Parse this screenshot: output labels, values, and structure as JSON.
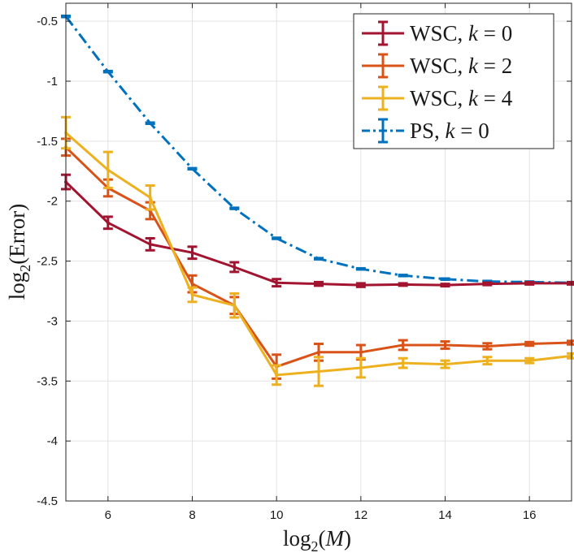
{
  "chart_data": {
    "type": "line",
    "xlabel": "log2(M)",
    "ylabel": "log2(Error)",
    "xlim": [
      5,
      17
    ],
    "ylim": [
      -4.5,
      -0.35
    ],
    "xticks": [
      6,
      8,
      10,
      12,
      14,
      16
    ],
    "xtick_labels": [
      "6",
      "8",
      "10",
      "12",
      "14",
      "16"
    ],
    "yticks": [
      -4.5,
      -4,
      -3.5,
      -3,
      -2.5,
      -2,
      -1.5,
      -1,
      -0.5
    ],
    "ytick_labels": [
      "-4.5",
      "-4",
      "-3.5",
      "-3",
      "-2.5",
      "-2",
      "-1.5",
      "-1",
      "-0.5"
    ],
    "grid": true,
    "legend_position": "top-right",
    "x": [
      5,
      6,
      7,
      8,
      9,
      10,
      11,
      12,
      13,
      14,
      15,
      16,
      17
    ],
    "series": [
      {
        "name": "WSC, k = 0",
        "color": "#A2142F",
        "line_style": "solid",
        "values": [
          -1.84,
          -2.18,
          -2.36,
          -2.43,
          -2.55,
          -2.68,
          -2.69,
          -2.7,
          -2.695,
          -2.7,
          -2.69,
          -2.685,
          -2.685
        ],
        "errors": [
          0.06,
          0.05,
          0.05,
          0.05,
          0.04,
          0.03,
          0.015,
          0.015,
          0.01,
          0.01,
          0.01,
          0.01,
          0.01
        ]
      },
      {
        "name": "WSC, k = 2",
        "color": "#D95319",
        "line_style": "solid",
        "values": [
          -1.55,
          -1.89,
          -2.08,
          -2.69,
          -2.87,
          -3.38,
          -3.26,
          -3.26,
          -3.2,
          -3.2,
          -3.21,
          -3.19,
          -3.18
        ],
        "errors": [
          0.07,
          0.07,
          0.07,
          0.07,
          0.07,
          0.1,
          0.07,
          0.06,
          0.04,
          0.03,
          0.025,
          0.015,
          0.015
        ]
      },
      {
        "name": "WSC, k = 4",
        "color": "#EDB120",
        "line_style": "solid",
        "values": [
          -1.43,
          -1.74,
          -1.97,
          -2.78,
          -2.87,
          -3.45,
          -3.42,
          -3.39,
          -3.35,
          -3.36,
          -3.33,
          -3.33,
          -3.29
        ],
        "errors": [
          0.13,
          0.15,
          0.1,
          0.06,
          0.1,
          0.08,
          0.12,
          0.08,
          0.04,
          0.03,
          0.03,
          0.02,
          0.02
        ]
      },
      {
        "name": "PS, k = 0",
        "color": "#0072BD",
        "line_style": "dashdot",
        "values": [
          -0.46,
          -0.92,
          -1.35,
          -1.73,
          -2.06,
          -2.31,
          -2.48,
          -2.565,
          -2.62,
          -2.65,
          -2.67,
          -2.675,
          -2.68
        ],
        "errors": [
          0.005,
          0.005,
          0.005,
          0.005,
          0.005,
          0.005,
          0.005,
          0.005,
          0.005,
          0.005,
          0.005,
          0.005,
          0.005
        ]
      }
    ]
  }
}
